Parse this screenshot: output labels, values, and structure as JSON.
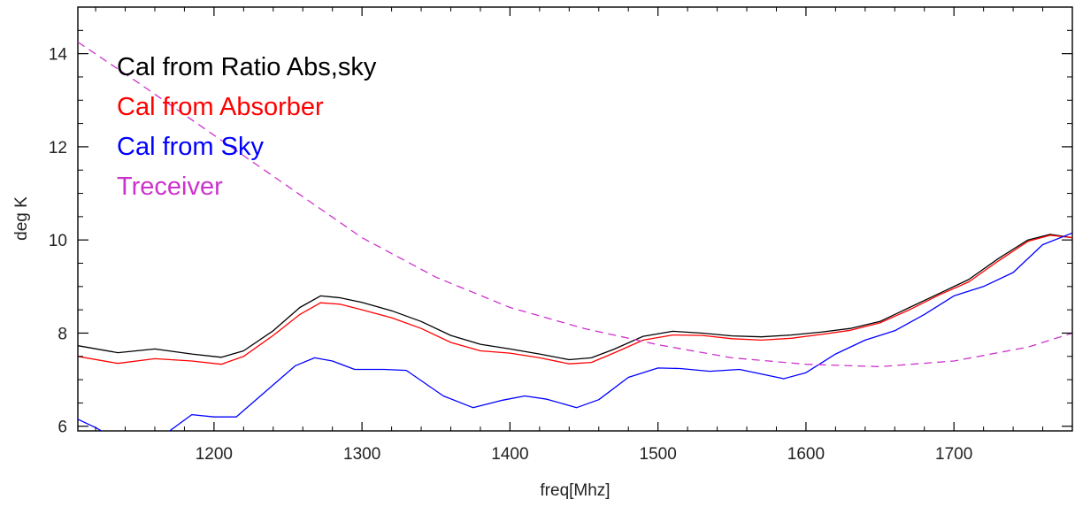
{
  "chart_data": {
    "type": "line",
    "title": "",
    "xlabel": "freq[Mhz]",
    "ylabel": "deg K",
    "xlim": [
      1108,
      1780
    ],
    "ylim": [
      5.9,
      15.0
    ],
    "x_ticks": [
      1200,
      1300,
      1400,
      1500,
      1600,
      1700
    ],
    "y_ticks": [
      6,
      8,
      10,
      12,
      14
    ],
    "grid": false,
    "legend_position": "top-left",
    "series": [
      {
        "name": "Cal from Ratio Abs,sky",
        "color": "#000000",
        "style": "solid",
        "points": [
          [
            1108,
            7.73
          ],
          [
            1135,
            7.58
          ],
          [
            1160,
            7.66
          ],
          [
            1185,
            7.55
          ],
          [
            1205,
            7.48
          ],
          [
            1220,
            7.62
          ],
          [
            1240,
            8.05
          ],
          [
            1258,
            8.55
          ],
          [
            1272,
            8.8
          ],
          [
            1285,
            8.76
          ],
          [
            1300,
            8.66
          ],
          [
            1320,
            8.48
          ],
          [
            1340,
            8.25
          ],
          [
            1360,
            7.95
          ],
          [
            1380,
            7.76
          ],
          [
            1400,
            7.66
          ],
          [
            1420,
            7.55
          ],
          [
            1440,
            7.43
          ],
          [
            1455,
            7.47
          ],
          [
            1470,
            7.65
          ],
          [
            1490,
            7.93
          ],
          [
            1510,
            8.04
          ],
          [
            1530,
            8.0
          ],
          [
            1550,
            7.94
          ],
          [
            1570,
            7.92
          ],
          [
            1590,
            7.96
          ],
          [
            1610,
            8.02
          ],
          [
            1630,
            8.1
          ],
          [
            1650,
            8.25
          ],
          [
            1670,
            8.55
          ],
          [
            1690,
            8.85
          ],
          [
            1710,
            9.15
          ],
          [
            1730,
            9.6
          ],
          [
            1750,
            10.0
          ],
          [
            1765,
            10.12
          ],
          [
            1780,
            10.05
          ]
        ]
      },
      {
        "name": "Cal from Absorber",
        "color": "#ff0000",
        "style": "solid",
        "points": [
          [
            1108,
            7.5
          ],
          [
            1135,
            7.35
          ],
          [
            1160,
            7.45
          ],
          [
            1185,
            7.4
          ],
          [
            1205,
            7.33
          ],
          [
            1220,
            7.5
          ],
          [
            1240,
            7.95
          ],
          [
            1258,
            8.4
          ],
          [
            1272,
            8.65
          ],
          [
            1285,
            8.62
          ],
          [
            1300,
            8.5
          ],
          [
            1320,
            8.33
          ],
          [
            1340,
            8.1
          ],
          [
            1360,
            7.8
          ],
          [
            1380,
            7.62
          ],
          [
            1400,
            7.57
          ],
          [
            1420,
            7.47
          ],
          [
            1440,
            7.34
          ],
          [
            1455,
            7.37
          ],
          [
            1470,
            7.57
          ],
          [
            1490,
            7.85
          ],
          [
            1510,
            7.96
          ],
          [
            1530,
            7.95
          ],
          [
            1550,
            7.88
          ],
          [
            1570,
            7.85
          ],
          [
            1590,
            7.89
          ],
          [
            1610,
            7.97
          ],
          [
            1630,
            8.06
          ],
          [
            1650,
            8.22
          ],
          [
            1670,
            8.5
          ],
          [
            1690,
            8.82
          ],
          [
            1710,
            9.1
          ],
          [
            1730,
            9.55
          ],
          [
            1750,
            9.97
          ],
          [
            1765,
            10.1
          ],
          [
            1780,
            10.05
          ]
        ]
      },
      {
        "name": "Cal from Sky",
        "color": "#0000ff",
        "style": "solid",
        "points": [
          [
            1108,
            6.15
          ],
          [
            1120,
            5.97
          ],
          [
            1135,
            5.7
          ],
          [
            1150,
            5.62
          ],
          [
            1170,
            5.9
          ],
          [
            1185,
            6.25
          ],
          [
            1200,
            6.2
          ],
          [
            1215,
            6.2
          ],
          [
            1235,
            6.75
          ],
          [
            1255,
            7.3
          ],
          [
            1268,
            7.47
          ],
          [
            1280,
            7.4
          ],
          [
            1295,
            7.22
          ],
          [
            1315,
            7.22
          ],
          [
            1330,
            7.2
          ],
          [
            1355,
            6.65
          ],
          [
            1375,
            6.4
          ],
          [
            1395,
            6.56
          ],
          [
            1410,
            6.65
          ],
          [
            1425,
            6.58
          ],
          [
            1445,
            6.4
          ],
          [
            1460,
            6.57
          ],
          [
            1480,
            7.05
          ],
          [
            1500,
            7.25
          ],
          [
            1515,
            7.24
          ],
          [
            1535,
            7.18
          ],
          [
            1555,
            7.22
          ],
          [
            1570,
            7.12
          ],
          [
            1585,
            7.02
          ],
          [
            1600,
            7.15
          ],
          [
            1620,
            7.55
          ],
          [
            1640,
            7.85
          ],
          [
            1660,
            8.05
          ],
          [
            1680,
            8.4
          ],
          [
            1700,
            8.8
          ],
          [
            1720,
            9.0
          ],
          [
            1740,
            9.3
          ],
          [
            1760,
            9.9
          ],
          [
            1780,
            10.15
          ]
        ]
      },
      {
        "name": "Treceiver",
        "color": "#cc33cc",
        "style": "dashed",
        "points": [
          [
            1108,
            14.25
          ],
          [
            1150,
            13.35
          ],
          [
            1200,
            12.25
          ],
          [
            1250,
            11.15
          ],
          [
            1300,
            10.05
          ],
          [
            1350,
            9.2
          ],
          [
            1400,
            8.55
          ],
          [
            1450,
            8.1
          ],
          [
            1500,
            7.75
          ],
          [
            1550,
            7.47
          ],
          [
            1600,
            7.33
          ],
          [
            1650,
            7.28
          ],
          [
            1700,
            7.4
          ],
          [
            1750,
            7.7
          ],
          [
            1780,
            8.0
          ]
        ]
      }
    ]
  }
}
